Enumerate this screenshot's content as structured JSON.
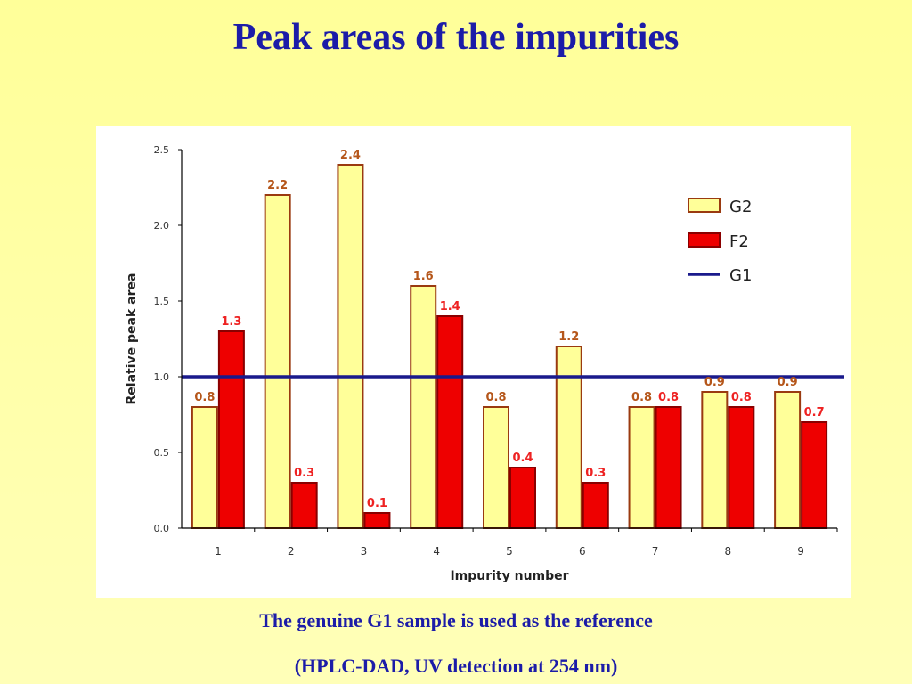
{
  "slide": {
    "title": "Peak areas of the impurities",
    "caption_line1": "The genuine G1 sample is used as the reference",
    "caption_line2": "(HPLC-DAD, UV detection at 254 nm)"
  },
  "chart_data": {
    "type": "bar",
    "title": "",
    "xlabel": "Impurity number",
    "ylabel": "Relative peak area",
    "categories": [
      "1",
      "2",
      "3",
      "4",
      "5",
      "6",
      "7",
      "8",
      "9"
    ],
    "ylim": [
      0,
      2.5
    ],
    "yticks": [
      "0.0",
      "0.5",
      "1.0",
      "1.5",
      "2.0",
      "2.5"
    ],
    "grid": false,
    "legend_position": "right",
    "series": [
      {
        "name": "G2",
        "values": [
          0.8,
          2.2,
          2.4,
          1.6,
          0.8,
          1.2,
          0.8,
          0.9,
          0.9
        ],
        "labels": [
          "0.8",
          "2.2",
          "2.4",
          "1.6",
          "0.8",
          "1.2",
          "0.8",
          "0.9",
          "0.9"
        ],
        "color": "#ffff99",
        "edge_color": "#9a3a10",
        "label_color": "#b5561a"
      },
      {
        "name": "F2",
        "values": [
          1.3,
          0.3,
          0.1,
          1.4,
          0.4,
          0.3,
          0.8,
          0.8,
          0.7
        ],
        "labels": [
          "1.3",
          "0.3",
          "0.1",
          "1.4",
          "0.4",
          "0.3",
          "0.8",
          "0.8",
          "0.7"
        ],
        "color": "#ee0000",
        "edge_color": "#8a0000",
        "label_color": "#ee2222"
      }
    ],
    "reference_line": {
      "name": "G1",
      "value": 1.0,
      "color": "#1a1a8c"
    }
  }
}
